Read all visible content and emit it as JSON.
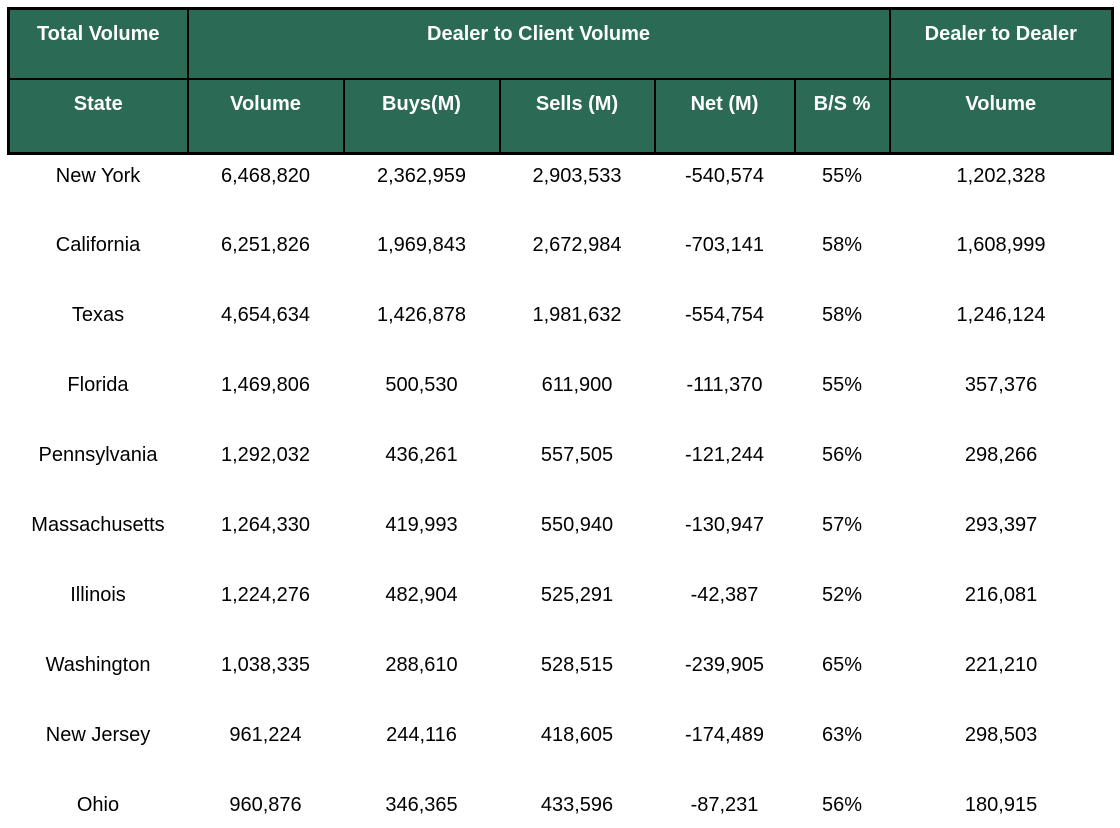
{
  "colors": {
    "header_bg": "#2B6A54",
    "header_text": "#FFFFFF",
    "border": "#000000",
    "body_text": "#000000",
    "body_bg": "#FFFFFF"
  },
  "chart_data": {
    "type": "table",
    "column_groups": [
      {
        "label": "Total Volume",
        "span": 1
      },
      {
        "label": "Dealer to Client Volume",
        "span": 5
      },
      {
        "label": "Dealer to Dealer",
        "span": 1
      }
    ],
    "columns": [
      "State",
      "Volume",
      "Buys(M)",
      "Sells (M)",
      "Net (M)",
      "B/S %",
      "Volume"
    ],
    "rows": [
      [
        "New York",
        "6,468,820",
        "2,362,959",
        "2,903,533",
        "-540,574",
        "55%",
        "1,202,328"
      ],
      [
        "California",
        "6,251,826",
        "1,969,843",
        "2,672,984",
        "-703,141",
        "58%",
        "1,608,999"
      ],
      [
        "Texas",
        "4,654,634",
        "1,426,878",
        "1,981,632",
        "-554,754",
        "58%",
        "1,246,124"
      ],
      [
        "Florida",
        "1,469,806",
        "500,530",
        "611,900",
        "-111,370",
        "55%",
        "357,376"
      ],
      [
        "Pennsylvania",
        "1,292,032",
        "436,261",
        "557,505",
        "-121,244",
        "56%",
        "298,266"
      ],
      [
        "Massachusetts",
        "1,264,330",
        "419,993",
        "550,940",
        "-130,947",
        "57%",
        "293,397"
      ],
      [
        "Illinois",
        "1,224,276",
        "482,904",
        "525,291",
        "-42,387",
        "52%",
        "216,081"
      ],
      [
        "Washington",
        "1,038,335",
        "288,610",
        "528,515",
        "-239,905",
        "65%",
        "221,210"
      ],
      [
        "New Jersey",
        "961,224",
        "244,116",
        "418,605",
        "-174,489",
        "63%",
        "298,503"
      ],
      [
        "Ohio",
        "960,876",
        "346,365",
        "433,596",
        "-87,231",
        "56%",
        "180,915"
      ]
    ]
  }
}
